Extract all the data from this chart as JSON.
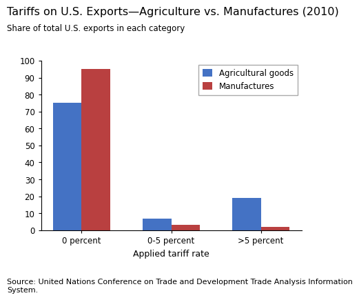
{
  "title": "Tariffs on U.S. Exports—Agriculture vs. Manufactures (2010)",
  "subtitle": "Share of total U.S. exports in each category",
  "xlabel": "Applied tariff rate",
  "categories": [
    "0 percent",
    "0-5 percent",
    ">5 percent"
  ],
  "agricultural_goods": [
    75,
    7,
    19
  ],
  "manufactures": [
    95,
    3,
    2
  ],
  "ag_color": "#4472C4",
  "mfg_color": "#B94040",
  "ylim": [
    0,
    100
  ],
  "yticks": [
    0,
    10,
    20,
    30,
    40,
    50,
    60,
    70,
    80,
    90,
    100
  ],
  "legend_labels": [
    "Agricultural goods",
    "Manufactures"
  ],
  "source_text": "Source: United Nations Conference on Trade and Development Trade Analysis Information\nSystem.",
  "title_fontsize": 11.5,
  "subtitle_fontsize": 8.5,
  "tick_fontsize": 8.5,
  "xlabel_fontsize": 9,
  "source_fontsize": 8,
  "bar_width": 0.32,
  "background_color": "#ffffff"
}
